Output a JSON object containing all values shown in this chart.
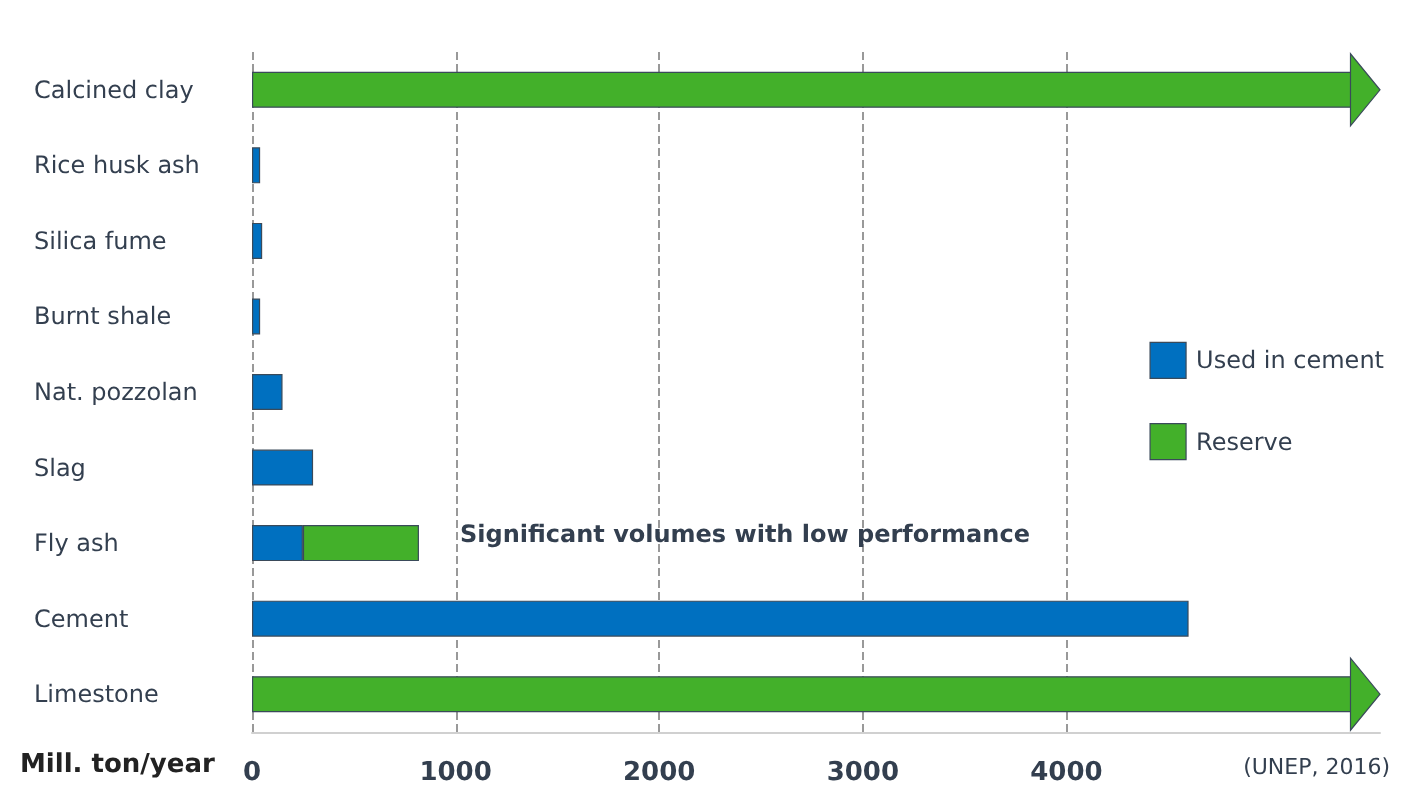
{
  "chart_data": {
    "type": "bar",
    "orientation": "horizontal",
    "stacked": true,
    "categories": [
      "Calcined clay",
      "Rice husk ash",
      "Silica fume",
      "Burnt shale",
      "Nat. pozzolan",
      "Slag",
      "Fly ash",
      "Cement",
      "Limestone"
    ],
    "series": [
      {
        "name": "Used in cement",
        "color": "#0070c0",
        "values": [
          null,
          40,
          50,
          40,
          150,
          300,
          250,
          4600,
          null
        ]
      },
      {
        "name": "Reserve",
        "color": "#43b02a",
        "values": [
          5400,
          null,
          null,
          null,
          null,
          null,
          570,
          null,
          5400
        ]
      }
    ],
    "xlabel": "Mill. ton/year",
    "xlim": [
      0,
      5540
    ],
    "xticks": [
      0,
      1000,
      2000,
      3000,
      4000
    ],
    "grid": "x",
    "legend": "right",
    "annotations": [
      "Significant volumes with low performance",
      "(UNEP, 2016)"
    ]
  }
}
